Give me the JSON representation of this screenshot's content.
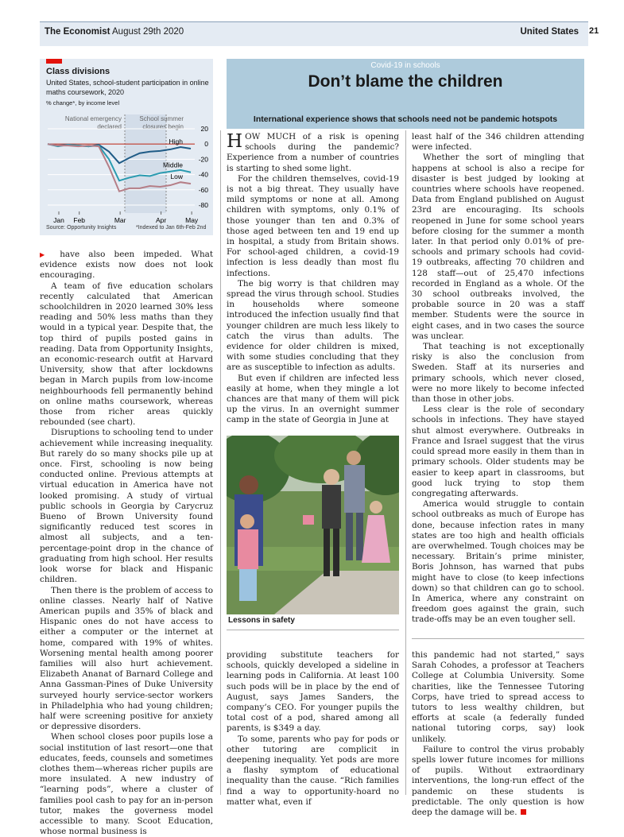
{
  "header": {
    "publication": "The Economist",
    "date": "August 29th 2020",
    "section": "United States",
    "page": "21"
  },
  "chart": {
    "title": "Class divisions",
    "subtitle": "United States, school-student participation in online maths coursework, 2020",
    "unit": "% change*, by income level",
    "annotations": [
      "National emergency declared",
      "School summer closures begin"
    ],
    "source": "Source: Opportunity Insights",
    "footnote": "*Indexed to Jan 6th-Feb 2nd",
    "colors": {
      "high": "#1f5b86",
      "middle": "#2a9bb0",
      "low": "#b57e87",
      "zero": "#c0392b"
    }
  },
  "chart_data": {
    "type": "line",
    "x": [
      "Jan 6",
      "Jan 20",
      "Feb 3",
      "Feb 17",
      "Mar 2",
      "Mar 9",
      "Mar 16",
      "Mar 23",
      "Mar 30",
      "Apr 6",
      "Apr 13",
      "Apr 20",
      "Apr 27",
      "May 4",
      "May 11"
    ],
    "series": [
      {
        "name": "High",
        "values": [
          0,
          -2,
          -1,
          -2,
          -3,
          -1,
          -10,
          -25,
          -18,
          -12,
          -10,
          -9,
          -7,
          -4,
          -6
        ]
      },
      {
        "name": "Middle",
        "values": [
          0,
          -3,
          -1,
          -2,
          -3,
          -2,
          -20,
          -48,
          -44,
          -41,
          -42,
          -38,
          -36,
          -34,
          -37
        ]
      },
      {
        "name": "Low",
        "values": [
          0,
          -2,
          -2,
          -3,
          -2,
          -3,
          -30,
          -62,
          -58,
          -58,
          -55,
          -56,
          -54,
          -50,
          -52
        ]
      }
    ],
    "xticks": [
      "Jan",
      "Feb",
      "Mar",
      "Apr",
      "May"
    ],
    "yticks": [
      "20",
      "0",
      "-20",
      "-40",
      "-60",
      "-80"
    ],
    "ylim": [
      -80,
      20
    ],
    "grid": true
  },
  "article": {
    "kicker": "Covid-19 in schools",
    "headline": "Don’t blame the children",
    "standfirst": "International experience shows that schools need not be pandemic hotspots",
    "p1_cap": "H",
    "p1_sc": "OW MUCH",
    "p1_rest": " of a risk is opening schools during the pandemic? Experience from a number of countries is starting to shed some light.",
    "p2": "For the children themselves, covid-19 is not a big threat. They usually have mild symptoms or none at all. Among children with symptoms, only 0.1% of those younger than ten and 0.3% of those aged between ten and 19 end up in hospital, a study from Britain shows. For school-aged children, a covid-19 infection is less deadly than most flu infections.",
    "p3": "The big worry is that children may spread the virus through school. Studies in households where someone introduced the infection usually find that younger children are much less likely to catch the virus than adults. The evidence for older children is mixed, with some studies concluding that they are as susceptible to infection as adults.",
    "p4": "But even if children are infected less easily at home, when they mingle a lot chances are that many of them will pick up the virus. In an overnight summer camp in the state of Georgia in June at",
    "c3p1": "least half of the 346 children attending were infected.",
    "c3p2": "Whether the sort of mingling that happens at school is also a recipe for disaster is best judged by looking at countries where schools have reopened. Data from England published on August 23rd are encouraging. Its schools reopened in June for some school years before closing for the summer a month later. In that period only 0.01% of pre-schools and primary schools had covid-19 outbreaks, affecting 70 children and 128 staff—out of 25,470 infections recorded in England as a whole. Of the 30 school outbreaks involved, the probable source in 20 was a staff member. Students were the source in eight cases, and in two cases the source was unclear.",
    "c3p3": "That teaching is not exceptionally risky is also the conclusion from Sweden. Staff at its nurseries and primary schools, which never closed, were no more likely to become infected than those in other jobs.",
    "c3p4": "Less clear is the role of secondary schools in infections. They have stayed shut almost everywhere. Outbreaks in France and Israel suggest that the virus could spread more easily in them than in primary schools. Older students may be easier to keep apart in classrooms, but good luck trying to stop them congregating afterwards.",
    "c3p5": "America would struggle to contain school outbreaks as much of Europe has done, because infection rates in many states are too high and health officials are overwhelmed. Tough choices may be necessary. Britain’s prime minister, Boris Johnson, has warned that pubs might have to close (to keep infections down) so that children can go to school. In America, where any constraint on freedom goes against the grain, such trade-offs may be an even tougher sell.",
    "caption": "Lessons in safety"
  },
  "sidebar_article": {
    "l1": "have also been impeded. What evidence exists now does not look encouraging.",
    "l2": "A team of five education scholars recently calculated that American schoolchildren in 2020 learned 30% less reading and 50% less maths than they would in a typical year. Despite that, the top third of pupils posted gains in reading. Data from Opportunity Insights, an economic-research outfit at Harvard University, show that after lockdowns began in March pupils from low-income neighbourhoods fell permanently behind on online maths coursework, whereas those from richer areas quickly rebounded (see chart).",
    "l3": "Disruptions to schooling tend to under achievement while increasing inequality. But rarely do so many shocks pile up at once. First, schooling is now being conducted online. Previous attempts at virtual education in America have not looked promising. A study of virtual public schools in Georgia by Carycruz Bueno of Brown University found significantly reduced test scores in almost all subjects, and a ten-percentage-point drop in the chance of graduating from high school. Her results look worse for black and Hispanic children.",
    "l4": "Then there is the problem of access to online classes. Nearly half of Native American pupils and 35% of black and Hispanic ones do not have access to either a computer or the internet at home, compared with 19% of whites. Worsening mental health among poorer families will also hurt achievement. Elizabeth Ananat of Barnard College and Anna Gassman-Pines of Duke University surveyed hourly service-sector workers in Philadelphia who had young children; half were screening positive for anxiety or depressive disorders.",
    "l5": "When school closes poor pupils lose a social institution of last resort—one that educates, feeds, counsels and sometimes clothes them—whereas richer pupils are more insulated. A new industry of “learning pods”, where a cluster of families pool cash to pay for an in-person tutor, makes the governess model accessible to many. Scoot Education, whose normal business is",
    "m1a": "providing substitute teachers for schools, quickly developed a sideline in learning pods in California. At least 100 such pods will be in place by the end of August, says James Sanders, the company’s ",
    "m1ceo": "CEO",
    "m1b": ". For younger pupils the total cost of a pod, shared among all parents, is $349 a day.",
    "m2": "To some, parents who pay for pods or other tutoring are complicit in deepening inequality. Yet pods are more a flashy symptom of educational inequality than the cause. “Rich families find a way to opportunity-hoard no matter what, even if",
    "r1": "this pandemic had not started,” says Sarah Cohodes, a professor at Teachers College at Columbia University. Some charities, like the Tennessee Tutoring Corps, have tried to spread access to tutors to less wealthy children, but efforts at scale (a federally funded national tutoring corps, say) look unlikely.",
    "r2": "Failure to control the virus probably spells lower future incomes for millions of pupils. Without extraordinary interventions, the long-run effect of the pandemic on these students is predictable. The only question is how deep the damage will be."
  }
}
